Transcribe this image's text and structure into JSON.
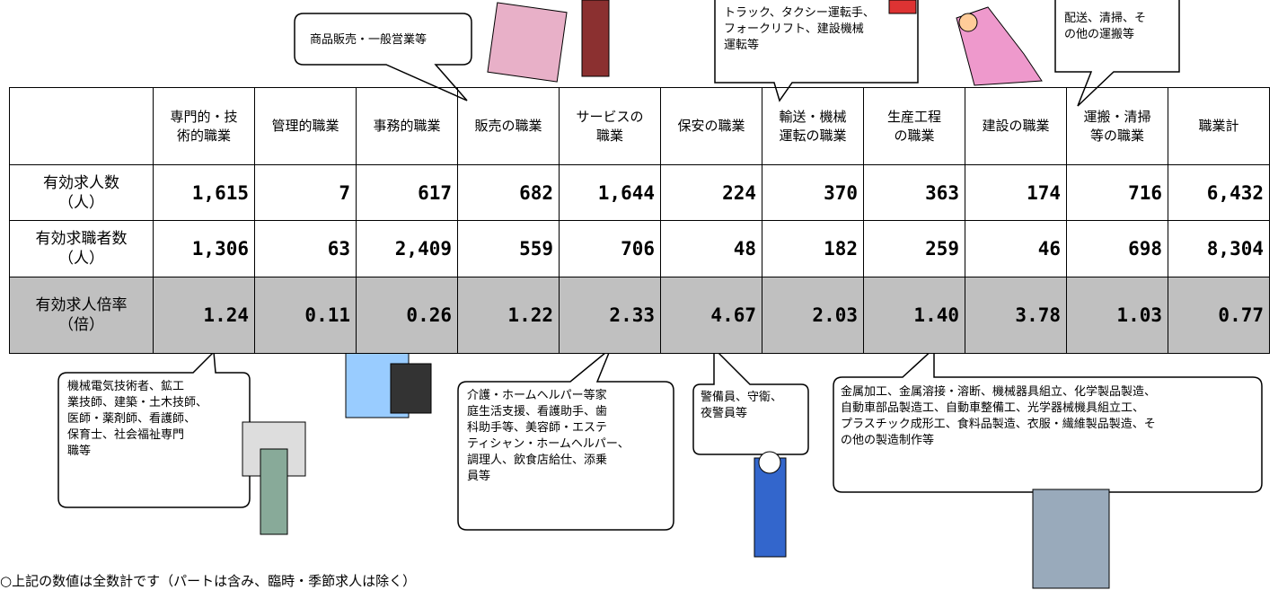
{
  "table": {
    "header": [
      [
        ""
      ],
      [
        "専門的・技",
        "術的職業"
      ],
      [
        "管理的職業"
      ],
      [
        "事務的職業"
      ],
      [
        "販売の職業"
      ],
      [
        "サービスの",
        "職業"
      ],
      [
        "保安の職業"
      ],
      [
        "輸送・機械",
        "運転の職業"
      ],
      [
        "生産工程",
        "の職業"
      ],
      [
        "建設の職業"
      ],
      [
        "運搬・清掃",
        "等の職業"
      ],
      [
        "職業計"
      ]
    ],
    "rows": [
      {
        "label": [
          "有効求人数",
          "（人）"
        ],
        "cells": [
          "1,615",
          "7",
          "617",
          "682",
          "1,644",
          "224",
          "370",
          "363",
          "174",
          "716",
          "6,432"
        ]
      },
      {
        "label": [
          "有効求職者数",
          "（人）"
        ],
        "cells": [
          "1,306",
          "63",
          "2,409",
          "559",
          "706",
          "48",
          "182",
          "259",
          "46",
          "698",
          "8,304"
        ]
      },
      {
        "label": [
          "有効求人倍率",
          "（倍）"
        ],
        "cells": [
          "1.24",
          "0.11",
          "0.26",
          "1.22",
          "2.33",
          "4.67",
          "2.03",
          "1.40",
          "3.78",
          "1.03",
          "0.77"
        ]
      }
    ]
  },
  "callouts": [
    {
      "lines": [
        "商品販売・一般営業等"
      ]
    },
    {
      "lines": [
        "トラック、タクシー運転手、",
        "フォークリフト、建設機械",
        "運転等"
      ]
    },
    {
      "lines": [
        "配送、清掃、そ",
        "の他の運搬等"
      ]
    },
    {
      "lines": [
        "機械電気技術者、鉱工",
        "業技師、建築・土木技師、",
        "医師・薬剤師、看護師、",
        "保育士、社会福祉専門",
        "職等"
      ]
    },
    {
      "lines": [
        "介護・ホームヘルパー等家",
        "庭生活支援、看護助手、歯",
        "科助手等、美容師・エステ",
        "ティシャン・ホームヘルパー、",
        "調理人、飲食店給仕、添乗",
        "員等"
      ]
    },
    {
      "lines": [
        "警備員、守衛、",
        "夜警員等"
      ]
    },
    {
      "lines": [
        "金属加工、金属溶接・溶断、機械器具組立、化学製品製造、",
        "自動車部品製造工、自動車整備工、光学器械機具組立工、",
        "プラスチック成形工、食料品製造、衣服・繊維製品製造、そ",
        "の他の製造制作等"
      ]
    }
  ],
  "footnote": "○上記の数値は全数計です（パートは含み、臨時・季節求人は除く）"
}
